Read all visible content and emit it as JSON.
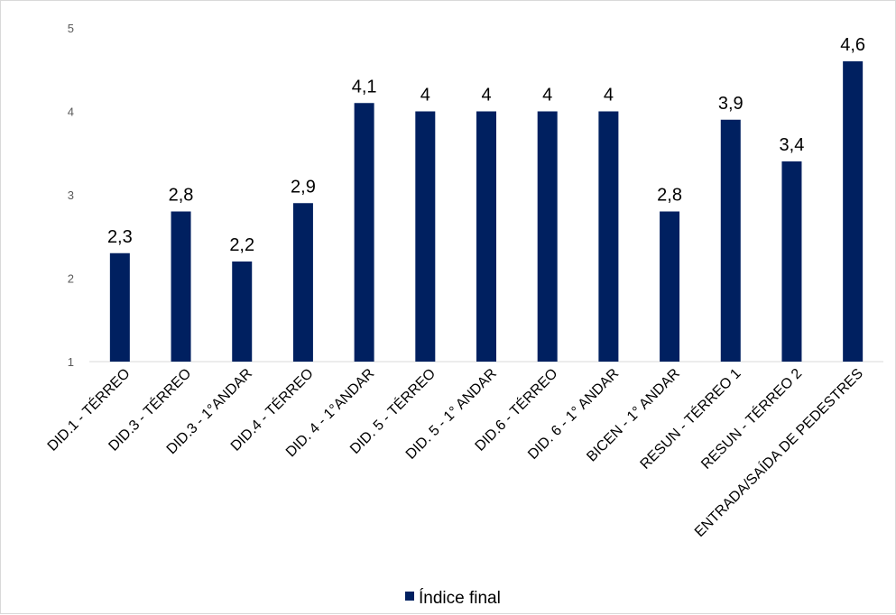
{
  "chart_data": {
    "type": "bar",
    "categories": [
      "DID.1 - TÉRREO",
      "DID.3 - TÉRREO",
      "DID.3 - 1°ANDAR",
      "DID.4 - TÉRREO",
      "DID. 4 - 1°ANDAR",
      "DID. 5 - TÉRREO",
      "DID. 5 - 1° ANDAR",
      "DID.6 - TÉRREO",
      "DID. 6 - 1° ANDAR",
      "BICEN - 1° ANDAR",
      "RESUN - TÉRREO 1",
      "RESUN - TÉRREO 2",
      "ENTRADA/SAÍDA DE PEDESTRES"
    ],
    "series": [
      {
        "name": "Índice final",
        "values": [
          2.3,
          2.8,
          2.2,
          2.9,
          4.1,
          4,
          4,
          4,
          4,
          2.8,
          3.9,
          3.4,
          4.6
        ],
        "labels": [
          "2,3",
          "2,8",
          "2,2",
          "2,9",
          "4,1",
          "4",
          "4",
          "4",
          "4",
          "2,8",
          "3,9",
          "3,4",
          "4,6"
        ],
        "color": "#002060"
      }
    ],
    "yticks": [
      "1",
      "2",
      "3",
      "4",
      "5"
    ],
    "ylim": [
      1,
      5
    ],
    "grid": false,
    "legend": "bottom"
  }
}
